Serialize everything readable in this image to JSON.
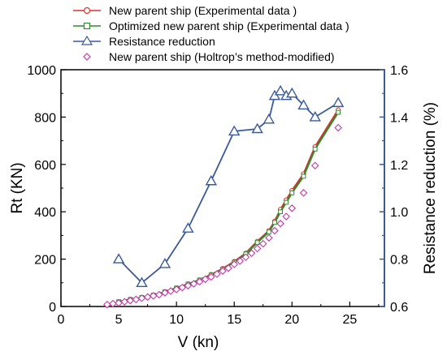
{
  "chart_data": {
    "type": "line",
    "x_axis": {
      "label": "V (kn)",
      "range": [
        0,
        28
      ],
      "ticks": [
        0,
        5,
        10,
        15,
        20,
        25
      ]
    },
    "y_axis_left": {
      "label": "Rt (KN)",
      "range": [
        0,
        1000
      ],
      "ticks": [
        0,
        200,
        400,
        600,
        800,
        1000
      ]
    },
    "y_axis_right": {
      "label": "Resistance reduction (%)",
      "range": [
        0.6,
        1.6
      ],
      "ticks": [
        "0.6",
        "0.8",
        "1.0",
        "1.2",
        "1.4",
        "1.6"
      ],
      "color": "#3a5a9c"
    },
    "legend_placement": "top-left",
    "grid": false,
    "series": [
      {
        "name": "New parent ship (Experimental data )",
        "axis": "left",
        "color": "#e0302a",
        "marker": "circle",
        "x": [
          5,
          6,
          7,
          8,
          9,
          10,
          11,
          12,
          13,
          14,
          15,
          16,
          17,
          18,
          18.5,
          19,
          19.5,
          20,
          21,
          22,
          24
        ],
        "y": [
          20,
          30,
          38,
          48,
          62,
          78,
          95,
          112,
          135,
          160,
          190,
          225,
          275,
          320,
          360,
          410,
          450,
          490,
          560,
          675,
          830
        ]
      },
      {
        "name": "Optimized new parent ship (Experimental data )",
        "axis": "left",
        "color": "#2e8b2e",
        "marker": "square",
        "x": [
          5,
          6,
          7,
          8,
          9,
          10,
          11,
          12,
          13,
          14,
          15,
          16,
          17,
          18,
          18.5,
          19,
          19.5,
          20,
          21,
          22,
          24
        ],
        "y": [
          20,
          30,
          38,
          48,
          62,
          78,
          95,
          112,
          133,
          158,
          187,
          222,
          270,
          315,
          355,
          400,
          440,
          480,
          550,
          665,
          820
        ]
      },
      {
        "name": "Resistance reduction",
        "axis": "right",
        "color": "#3a5a9c",
        "marker": "triangle",
        "x": [
          5,
          7,
          9,
          11,
          13,
          15,
          17,
          18,
          18.5,
          19,
          19.5,
          20,
          21,
          22,
          24
        ],
        "y": [
          0.8,
          0.7,
          0.78,
          0.93,
          1.13,
          1.34,
          1.35,
          1.39,
          1.49,
          1.51,
          1.49,
          1.5,
          1.45,
          1.4,
          1.46
        ]
      },
      {
        "name": "New parent ship (Holtrop’s method-modified)",
        "axis": "left",
        "color": "#c43aa8",
        "marker": "diamond",
        "x": [
          4,
          4.5,
          5,
          5.5,
          6,
          6.5,
          7,
          7.5,
          8,
          8.5,
          9,
          9.5,
          10,
          10.5,
          11,
          11.5,
          12,
          12.5,
          13,
          13.5,
          14,
          14.5,
          15,
          15.5,
          16,
          16.5,
          17,
          17.5,
          18,
          18.5,
          19,
          19.5,
          20,
          21,
          22,
          24
        ],
        "y": [
          8,
          12,
          15,
          20,
          25,
          30,
          35,
          40,
          45,
          50,
          58,
          65,
          72,
          80,
          88,
          96,
          105,
          115,
          125,
          137,
          150,
          162,
          178,
          192,
          208,
          225,
          245,
          265,
          290,
          320,
          350,
          380,
          415,
          480,
          595,
          755
        ]
      }
    ]
  }
}
